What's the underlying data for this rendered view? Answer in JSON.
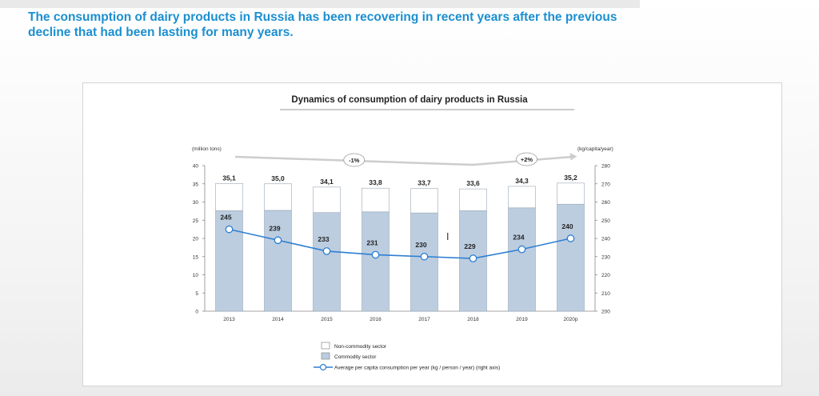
{
  "headline": "The consumption of dairy products in Russia has been recovering in recent years after the previous decline that had been lasting for many years.",
  "chart_data": {
    "type": "bar",
    "title": "Dynamics of consumption of dairy products in Russia",
    "y_left_label": "(million tons)",
    "y_right_label": "(kg/capita/year)",
    "ylim_left": [
      0,
      40
    ],
    "ylim_right": [
      200,
      280
    ],
    "y_left_ticks": [
      "0",
      "5",
      "10",
      "15",
      "20",
      "25",
      "30",
      "35",
      "40"
    ],
    "y_right_ticks": [
      "200",
      "210",
      "220",
      "230",
      "240",
      "250",
      "260",
      "270",
      "280"
    ],
    "categories": [
      "2013",
      "2014",
      "2015",
      "2016",
      "2017",
      "2018",
      "2019",
      "2020p"
    ],
    "total_labels": [
      "35,1",
      "35,0",
      "34,1",
      "33,8",
      "33,7",
      "33,6",
      "34,3",
      "35,2"
    ],
    "series": [
      {
        "name": "Non-commodity sector",
        "values": [
          7.5,
          7.3,
          7.0,
          6.5,
          6.7,
          6.0,
          5.9,
          5.8
        ]
      },
      {
        "name": "Commodity sector",
        "values": [
          27.6,
          27.7,
          27.1,
          27.3,
          27.0,
          27.6,
          28.4,
          29.4
        ]
      }
    ],
    "line_series": {
      "name": "Average per capita consumption per year (kg / person / year) (right axis)",
      "values": [
        245,
        239,
        233,
        231,
        230,
        229,
        234,
        240
      ]
    },
    "annotations": [
      {
        "text": "-1%",
        "from_category": "2013",
        "to_category": "2018"
      },
      {
        "text": "+2%",
        "from_category": "2018",
        "to_category": "2020p"
      }
    ],
    "legend_position": "bottom",
    "grid": false
  },
  "colors": {
    "headline": "#1b8fd0",
    "commodity_fill": "#bccde0",
    "non_commodity_fill": "#ffffff",
    "bar_stroke": "#9aa7b6",
    "line": "#2f7fd2",
    "arrow": "#cdcdcd"
  }
}
